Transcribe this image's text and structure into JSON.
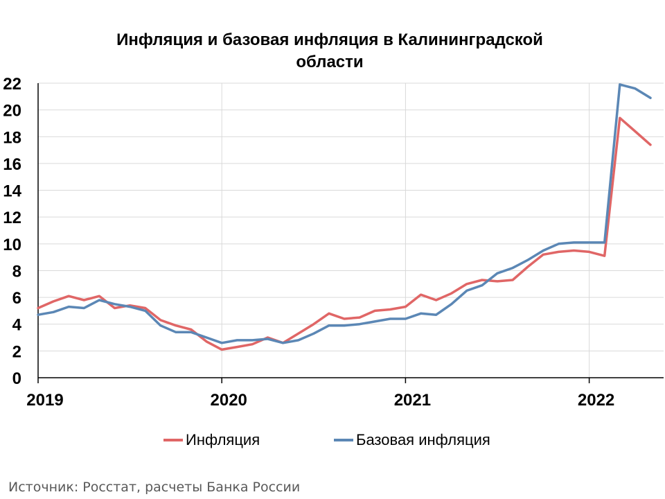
{
  "title_line1": "Инфляция и базовая инфляция в Калининградской",
  "title_line2": "области",
  "source": "Источник: Росстат, расчеты Банка России",
  "colors": {
    "inflation": "#e06666",
    "core": "#5b87b5",
    "grid": "#d9d9d9",
    "axis": "#000000"
  },
  "chart_data": {
    "type": "line",
    "title": "Инфляция и базовая инфляция в Калининградской области",
    "xlabel": "",
    "ylabel": "",
    "ylim": [
      0,
      22
    ],
    "yticks": [
      "0",
      "2",
      "4",
      "6",
      "8",
      "10",
      "12",
      "14",
      "16",
      "18",
      "20",
      "22"
    ],
    "xtick_labels": [
      "2019",
      "2020",
      "2021",
      "2022"
    ],
    "x": [
      "2019-01",
      "2019-02",
      "2019-03",
      "2019-04",
      "2019-05",
      "2019-06",
      "2019-07",
      "2019-08",
      "2019-09",
      "2019-10",
      "2019-11",
      "2019-12",
      "2020-01",
      "2020-02",
      "2020-03",
      "2020-04",
      "2020-05",
      "2020-06",
      "2020-07",
      "2020-08",
      "2020-09",
      "2020-10",
      "2020-11",
      "2020-12",
      "2021-01",
      "2021-02",
      "2021-03",
      "2021-04",
      "2021-05",
      "2021-06",
      "2021-07",
      "2021-08",
      "2021-09",
      "2021-10",
      "2021-11",
      "2021-12",
      "2022-01",
      "2022-02",
      "2022-03",
      "2022-04",
      "2022-05"
    ],
    "grid": true,
    "legend_position": "bottom",
    "series": [
      {
        "name": "Инфляция",
        "values": [
          5.2,
          5.7,
          6.1,
          5.8,
          6.1,
          5.2,
          5.4,
          5.2,
          4.3,
          3.9,
          3.6,
          2.7,
          2.1,
          2.3,
          2.5,
          3.0,
          2.6,
          3.3,
          4.0,
          4.8,
          4.4,
          4.5,
          5.0,
          5.1,
          5.3,
          6.2,
          5.8,
          6.3,
          7.0,
          7.3,
          7.2,
          7.3,
          8.3,
          9.2,
          9.4,
          9.5,
          9.4,
          9.1,
          19.4,
          18.4,
          17.4
        ]
      },
      {
        "name": "Базовая инфляция",
        "values": [
          4.7,
          4.9,
          5.3,
          5.2,
          5.8,
          5.5,
          5.3,
          5.0,
          3.9,
          3.4,
          3.4,
          3.0,
          2.6,
          2.8,
          2.8,
          2.9,
          2.6,
          2.8,
          3.3,
          3.9,
          3.9,
          4.0,
          4.2,
          4.4,
          4.4,
          4.8,
          4.7,
          5.5,
          6.5,
          6.9,
          7.8,
          8.2,
          8.8,
          9.5,
          10.0,
          10.1,
          10.1,
          10.1,
          21.9,
          21.6,
          20.9
        ]
      }
    ]
  }
}
